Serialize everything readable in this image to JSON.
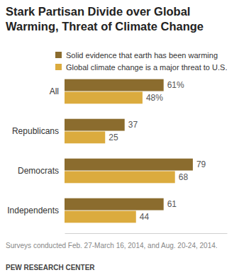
{
  "chart_data": {
    "type": "bar",
    "title": "Stark Partisan Divide over Global Warming, Threat of Climate Change",
    "orientation": "horizontal",
    "categories": [
      "All",
      "Republicans",
      "Democrats",
      "Independents"
    ],
    "series": [
      {
        "name": "Solid evidence that earth has been warming",
        "color": "#8b6c2e",
        "values": [
          61,
          37,
          79,
          61
        ],
        "value_labels": [
          "61%",
          "37",
          "79",
          "61"
        ]
      },
      {
        "name": "Global climate change is a major threat to U.S.",
        "color": "#dbab3e",
        "values": [
          48,
          25,
          68,
          44
        ],
        "value_labels": [
          "48%",
          "25",
          "68",
          "44"
        ]
      }
    ],
    "xlim": [
      0,
      100
    ],
    "tick_labels": false,
    "data_labels": true,
    "legend": "top",
    "notes": "Surveys conducted Feb. 27-March 16, 2014, and Aug. 20-24, 2014.",
    "source": "PEW RESEARCH CENTER"
  }
}
